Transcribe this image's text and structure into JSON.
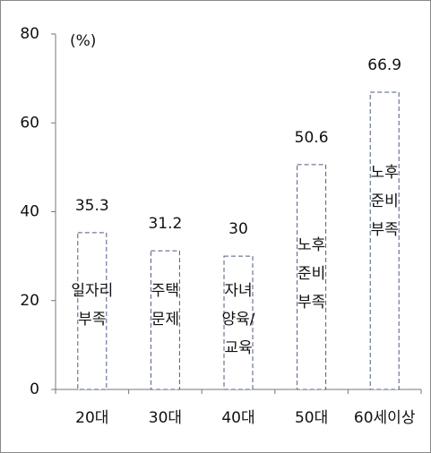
{
  "chart_data": {
    "type": "bar",
    "unit": "(%)",
    "categories": [
      "20대",
      "30대",
      "40대",
      "50대",
      "60세이상"
    ],
    "values": [
      35.3,
      31.2,
      30,
      50.6,
      66.9
    ],
    "bar_labels": [
      [
        "일자리",
        "부족"
      ],
      [
        "주택",
        "문제"
      ],
      [
        "자녀",
        "양육/",
        "교육"
      ],
      [
        "노후",
        "준비",
        "부족"
      ],
      [
        "노후",
        "준비",
        "부족"
      ]
    ],
    "color": "#ffffff",
    "edge_color": "#4a5a8a",
    "ylim": [
      0,
      80
    ],
    "yticks": [
      0,
      20,
      40,
      60,
      80
    ],
    "grid": false
  }
}
